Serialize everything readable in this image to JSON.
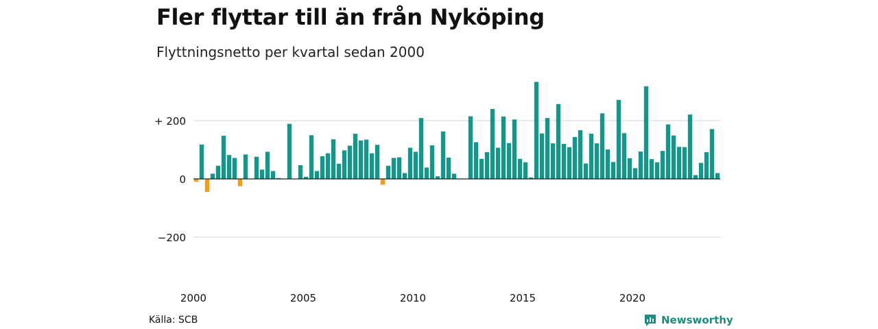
{
  "title": "Fler flyttar till än från Nyköping",
  "subtitle": "Flyttningsnetto per kvartal sedan 2000",
  "source": "Källa: SCB",
  "brand": {
    "name": "Newsworthy",
    "color": "#1b8b80"
  },
  "colors": {
    "positive": "#16958a",
    "negative": "#f29d19"
  },
  "chart_data": {
    "type": "bar",
    "title": "Fler flyttar till än från Nyköping",
    "subtitle": "Flyttningsnetto per kvartal sedan 2000",
    "ylim": [
      -300,
      330
    ],
    "yticks": [
      {
        "value": 200,
        "label": "+ 200"
      },
      {
        "value": 0,
        "label": "0"
      },
      {
        "value": -200,
        "label": "−200"
      }
    ],
    "xtick_labels": [
      "2000",
      "2005",
      "2010",
      "2015",
      "2020"
    ],
    "grid": true,
    "series": [
      {
        "x_start": 2000,
        "periods_per_year": 4,
        "values": [
          -10,
          118,
          -45,
          18,
          45,
          148,
          82,
          72,
          -25,
          84,
          0,
          76,
          32,
          93,
          27,
          3,
          0,
          189,
          0,
          47,
          7,
          150,
          27,
          78,
          88,
          136,
          52,
          98,
          114,
          155,
          132,
          135,
          88,
          117,
          -20,
          45,
          72,
          74,
          20,
          107,
          93,
          209,
          39,
          115,
          9,
          163,
          73,
          18,
          0,
          0,
          215,
          126,
          69,
          92,
          240,
          107,
          214,
          123,
          204,
          69,
          57,
          5,
          333,
          156,
          209,
          122,
          257,
          120,
          109,
          144,
          167,
          53,
          155,
          122,
          225,
          101,
          58,
          271,
          157,
          71,
          37,
          94,
          318,
          68,
          57,
          96,
          187,
          149,
          110,
          109,
          221,
          13,
          55,
          92,
          171,
          20
        ]
      }
    ]
  }
}
